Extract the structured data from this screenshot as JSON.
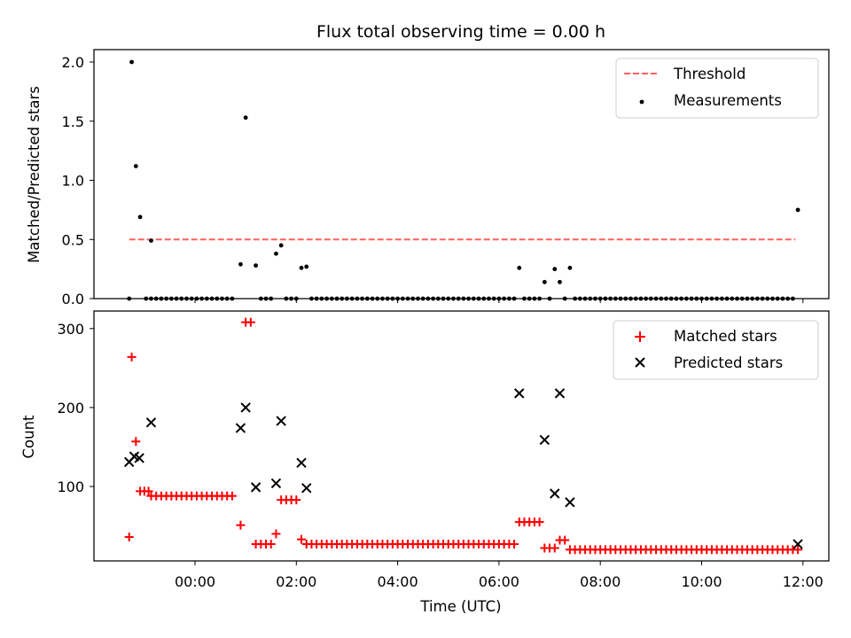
{
  "chart_data": [
    {
      "type": "scatter",
      "title": "Flux total observing time = 0.00 h",
      "xlabel": "",
      "ylabel": "Matched/Predicted stars",
      "ylim": [
        0,
        2.1
      ],
      "yticks": [
        0.0,
        0.5,
        1.0,
        1.5,
        2.0
      ],
      "ytick_labels": [
        "0.0",
        "0.5",
        "1.0",
        "1.5",
        "2.0"
      ],
      "xlim_hours": [
        -2.0,
        12.5
      ],
      "threshold": {
        "name": "Threshold",
        "value": 0.5,
        "x_start": -1.3,
        "x_end": 11.85,
        "color": "#ff6060",
        "style": "dashed"
      },
      "legend": {
        "position": "top-right",
        "entries": [
          "Threshold",
          "Measurements"
        ]
      },
      "series": [
        {
          "name": "Measurements",
          "color": "#000000",
          "marker": "dot",
          "explicit_points": [
            {
              "x": "-01:18",
              "y": 0.0
            },
            {
              "x": "-01:15",
              "y": 2.0
            },
            {
              "x": "-01:10",
              "y": 1.12
            },
            {
              "x": "-01:05",
              "y": 0.69
            },
            {
              "x": "-00:52",
              "y": 0.49
            },
            {
              "x": "00:54",
              "y": 0.29
            },
            {
              "x": "01:00",
              "y": 1.53
            },
            {
              "x": "01:12",
              "y": 0.28
            },
            {
              "x": "01:36",
              "y": 0.38
            },
            {
              "x": "01:42",
              "y": 0.45
            },
            {
              "x": "02:06",
              "y": 0.26
            },
            {
              "x": "02:12",
              "y": 0.27
            },
            {
              "x": "06:24",
              "y": 0.26
            },
            {
              "x": "06:54",
              "y": 0.14
            },
            {
              "x": "07:06",
              "y": 0.25
            },
            {
              "x": "07:12",
              "y": 0.14
            },
            {
              "x": "07:24",
              "y": 0.26
            },
            {
              "x": "11:54",
              "y": 0.75
            }
          ],
          "zero_runs": [
            {
              "from": "-00:58",
              "to": "00:48",
              "step_minutes": 6,
              "y": 0.0
            },
            {
              "from": "01:18",
              "to": "01:30",
              "step_minutes": 6,
              "y": 0.0
            },
            {
              "from": "01:48",
              "to": "02:00",
              "step_minutes": 6,
              "y": 0.0
            },
            {
              "from": "02:18",
              "to": "06:18",
              "step_minutes": 6,
              "y": 0.0
            },
            {
              "from": "06:30",
              "to": "06:48",
              "step_minutes": 6,
              "y": 0.0
            },
            {
              "from": "07:00",
              "to": "07:00",
              "step_minutes": 6,
              "y": 0.0
            },
            {
              "from": "07:18",
              "to": "07:18",
              "step_minutes": 6,
              "y": 0.0
            },
            {
              "from": "07:30",
              "to": "11:48",
              "step_minutes": 6,
              "y": 0.0
            }
          ]
        }
      ]
    },
    {
      "type": "scatter",
      "title": "",
      "xlabel": "Time (UTC)",
      "ylabel": "Count",
      "ylim": [
        10,
        320
      ],
      "yticks": [
        100,
        200,
        300
      ],
      "ytick_labels": [
        "100",
        "200",
        "300"
      ],
      "xlim_hours": [
        -2.0,
        12.5
      ],
      "xticks": [
        "00:00",
        "02:00",
        "04:00",
        "06:00",
        "08:00",
        "10:00",
        "12:00"
      ],
      "legend": {
        "position": "top-right",
        "entries": [
          "Matched stars",
          "Predicted stars"
        ]
      },
      "series": [
        {
          "name": "Matched stars",
          "color": "#ff0000",
          "marker": "plus",
          "explicit_points": [
            {
              "x": "-01:18",
              "y": 36
            },
            {
              "x": "-01:15",
              "y": 264
            },
            {
              "x": "-01:10",
              "y": 157
            },
            {
              "x": "-01:05",
              "y": 94
            },
            {
              "x": "-01:00",
              "y": 94
            },
            {
              "x": "-00:55",
              "y": 94
            },
            {
              "x": "00:54",
              "y": 51
            },
            {
              "x": "01:00",
              "y": 308
            },
            {
              "x": "01:06",
              "y": 308
            },
            {
              "x": "01:36",
              "y": 40
            },
            {
              "x": "02:06",
              "y": 33
            }
          ],
          "runs": [
            {
              "from": "-00:52",
              "to": "00:48",
              "step_minutes": 6,
              "y": 88
            },
            {
              "from": "01:12",
              "to": "01:30",
              "step_minutes": 6,
              "y": 27
            },
            {
              "from": "01:42",
              "to": "02:00",
              "step_minutes": 6,
              "y": 83
            },
            {
              "from": "02:12",
              "to": "06:18",
              "step_minutes": 6,
              "y": 27
            },
            {
              "from": "06:24",
              "to": "06:48",
              "step_minutes": 6,
              "y": 55
            },
            {
              "from": "06:54",
              "to": "07:06",
              "step_minutes": 6,
              "y": 22
            },
            {
              "from": "07:12",
              "to": "07:18",
              "step_minutes": 6,
              "y": 32
            },
            {
              "from": "07:24",
              "to": "11:54",
              "step_minutes": 6,
              "y": 20
            }
          ]
        },
        {
          "name": "Predicted stars",
          "color": "#000000",
          "marker": "x",
          "explicit_points": [
            {
              "x": "-01:18",
              "y": 131
            },
            {
              "x": "-01:12",
              "y": 138
            },
            {
              "x": "-01:06",
              "y": 136
            },
            {
              "x": "-00:52",
              "y": 181
            },
            {
              "x": "00:54",
              "y": 174
            },
            {
              "x": "01:00",
              "y": 200
            },
            {
              "x": "01:12",
              "y": 99
            },
            {
              "x": "01:36",
              "y": 104
            },
            {
              "x": "01:42",
              "y": 183
            },
            {
              "x": "02:06",
              "y": 130
            },
            {
              "x": "02:12",
              "y": 98
            },
            {
              "x": "06:24",
              "y": 218
            },
            {
              "x": "06:54",
              "y": 159
            },
            {
              "x": "07:06",
              "y": 91
            },
            {
              "x": "07:12",
              "y": 218
            },
            {
              "x": "07:24",
              "y": 80
            },
            {
              "x": "11:54",
              "y": 27
            }
          ]
        }
      ]
    }
  ]
}
